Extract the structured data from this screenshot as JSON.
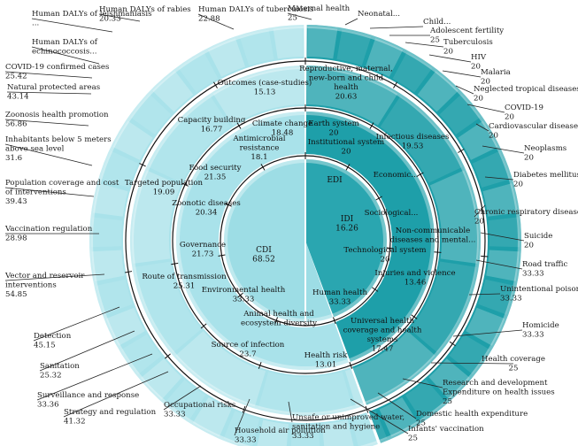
{
  "chart_data": {
    "type": "sunburst",
    "title": "",
    "colors": {
      "left_light": "#a9e2ea",
      "left_dark": "#7fcfd9",
      "right_dark": "#1e9fa9",
      "right_light": "#8fd3da",
      "center_left": "#9ddde5",
      "center_right": "#2aa6b0",
      "bevel": "#ffffff",
      "divider": "#111111"
    },
    "rings": [
      {
        "name": "",
        "items": [
          {
            "label": "CDI",
            "value": "68.52",
            "side": "left"
          },
          {
            "label": "EDI",
            "value": "",
            "side": "right"
          },
          {
            "label": "IDI",
            "value": "16.26",
            "side": "right"
          }
        ]
      },
      {
        "name": "",
        "items": [
          {
            "label": "Climate change",
            "value": "18.48",
            "side": "left"
          },
          {
            "label": "Antimicrobial resistance",
            "value": "18.1",
            "side": "left"
          },
          {
            "label": "Food security",
            "value": "21.35",
            "side": "left"
          },
          {
            "label": "Zoonotic diseases",
            "value": "20.34",
            "side": "left"
          },
          {
            "label": "Governance",
            "value": "21.73",
            "side": "left"
          },
          {
            "label": "Environmental health",
            "value": "33.33",
            "side": "left"
          },
          {
            "label": "Animal health and ecosystem diversity",
            "value": "",
            "side": "left"
          },
          {
            "label": "Earth system",
            "value": "20",
            "side": "right"
          },
          {
            "label": "Institutional system",
            "value": "20",
            "side": "right"
          },
          {
            "label": "Economic...",
            "value": "",
            "side": "right"
          },
          {
            "label": "Sociological...",
            "value": "",
            "side": "right"
          },
          {
            "label": "Technological system",
            "value": "20",
            "side": "right"
          },
          {
            "label": "Human health",
            "value": "33.33",
            "side": "right"
          }
        ]
      },
      {
        "name": "",
        "items": [
          {
            "label": "Outcomes (case-studies)",
            "value": "15.13",
            "side": "left"
          },
          {
            "label": "Capacity building",
            "value": "16.77",
            "side": "left"
          },
          {
            "label": "Targeted population",
            "value": "19.09",
            "side": "left"
          },
          {
            "label": "Route of transmission",
            "value": "25.31",
            "side": "left"
          },
          {
            "label": "Source of infection",
            "value": "23.7",
            "side": "left"
          },
          {
            "label": "Reproductive, maternal, new-born and child health",
            "value": "20.63",
            "side": "right"
          },
          {
            "label": "Infectious diseases",
            "value": "19.53",
            "side": "right"
          },
          {
            "label": "Non-communicable diseases and mental...",
            "value": "",
            "side": "right"
          },
          {
            "label": "Injuries and violence",
            "value": "13.46",
            "side": "right"
          },
          {
            "label": "Universal health coverage and health systems",
            "value": "17.47",
            "side": "right"
          },
          {
            "label": "Health risk",
            "value": "13.01",
            "side": "right"
          }
        ]
      }
    ],
    "outer_labels": [
      {
        "label": "Human DALYs of leishmaniasis ...",
        "value": ""
      },
      {
        "label": "Human DALYs of rabies",
        "value": "20.33"
      },
      {
        "label": "Human DALYs of tuberculosis",
        "value": "22.88"
      },
      {
        "label": "Human DALYs of echinococcosis...",
        "value": ""
      },
      {
        "label": "COVID-19 confirmed cases",
        "value": "25.42"
      },
      {
        "label": "Natural protected areas",
        "value": "43.14"
      },
      {
        "label": "Zoonosis health promotion",
        "value": "56.86"
      },
      {
        "label": "Inhabitants below 5 meters above sea level",
        "value": "31.6"
      },
      {
        "label": "Population coverage and cost of interventions",
        "value": "39.43"
      },
      {
        "label": "Vaccination regulation",
        "value": "28.98"
      },
      {
        "label": "Vector and reservoir interventions",
        "value": "54.85"
      },
      {
        "label": "Detection",
        "value": "45.15"
      },
      {
        "label": "Sanitation",
        "value": "25.32"
      },
      {
        "label": "Surveillance and response",
        "value": "33.36"
      },
      {
        "label": "Strategy and regulation",
        "value": "41.32"
      },
      {
        "label": "Occupational risks",
        "value": "33.33"
      },
      {
        "label": "Household air pollution",
        "value": "33.33"
      },
      {
        "label": "Unsafe or unimproved water, sanitation and hygiene",
        "value": "33.33"
      },
      {
        "label": "Infants' vaccination",
        "value": "25"
      },
      {
        "label": "Domestic health expenditure",
        "value": "25"
      },
      {
        "label": "Research and development Expenditure on health issues",
        "value": "25"
      },
      {
        "label": "Health coverage",
        "value": "25"
      },
      {
        "label": "Homicide",
        "value": "33.33"
      },
      {
        "label": "Unintentional poisoning",
        "value": "33.33"
      },
      {
        "label": "Road traffic",
        "value": "33.33"
      },
      {
        "label": "Suicide",
        "value": "20"
      },
      {
        "label": "Chronic respiratory disease",
        "value": "20"
      },
      {
        "label": "Diabetes mellitus",
        "value": "20"
      },
      {
        "label": "Neoplasms",
        "value": "20"
      },
      {
        "label": "Cardiovascular disease",
        "value": "20"
      },
      {
        "label": "COVID-19",
        "value": "20"
      },
      {
        "label": "Neglected tropical diseases",
        "value": "20"
      },
      {
        "label": "Malaria",
        "value": "20"
      },
      {
        "label": "HIV",
        "value": "20"
      },
      {
        "label": "Tuberculosis",
        "value": "20"
      },
      {
        "label": "Adolescent fertility",
        "value": "25"
      },
      {
        "label": "Child...",
        "value": ""
      },
      {
        "label": "Neonatal...",
        "value": ""
      },
      {
        "label": "Maternal health",
        "value": "25"
      }
    ]
  }
}
